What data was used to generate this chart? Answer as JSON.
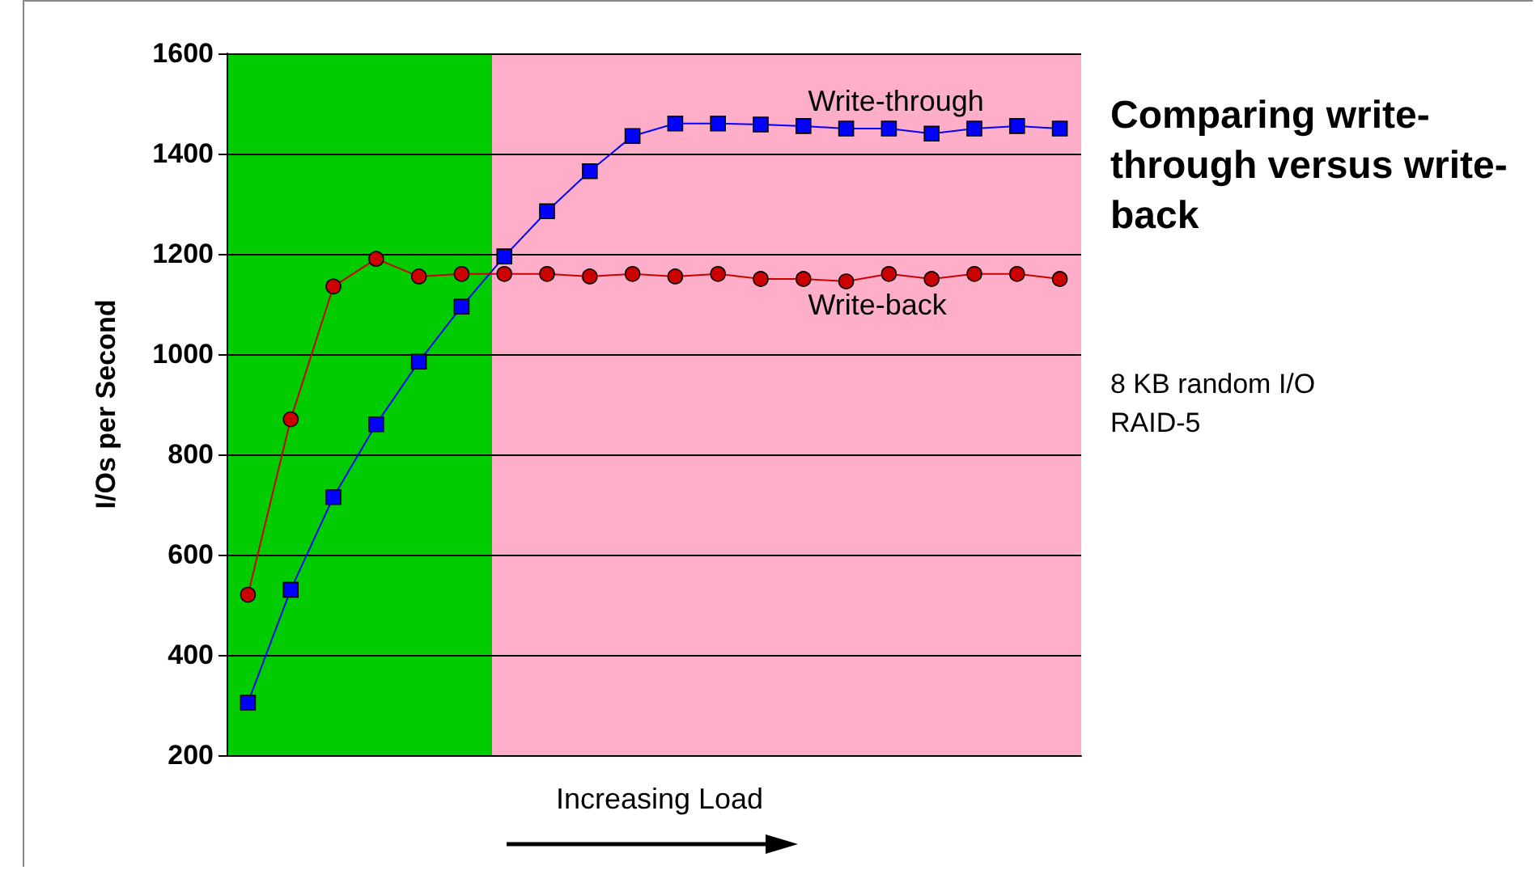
{
  "chart_data": {
    "type": "line",
    "title": "Comparing write-through versus write-back",
    "xlabel": "Increasing Load",
    "ylabel": "I/Os per Second",
    "annotations": [
      "8 KB random I/O",
      "RAID-5"
    ],
    "categories": [
      null,
      null,
      null,
      null,
      null,
      null,
      null,
      null,
      null,
      null,
      null,
      null,
      null,
      null,
      null,
      null,
      null,
      null,
      null,
      null
    ],
    "ylim": [
      200,
      1600
    ],
    "yticks": [
      200,
      400,
      600,
      800,
      1000,
      1200,
      1400,
      1600
    ],
    "tick_labels": "y",
    "grid": "y",
    "line_style": "solid",
    "series": [
      {
        "name": "Write-through",
        "color": "#0000ff",
        "marker": "square",
        "values": [
          305,
          530,
          715,
          860,
          985,
          1095,
          1195,
          1285,
          1365,
          1435,
          1460,
          1460,
          1458,
          1455,
          1450,
          1450,
          1440,
          1450,
          1455,
          1450
        ]
      },
      {
        "name": "Write-back",
        "color": "#cc0000",
        "marker": "circle",
        "values": [
          520,
          870,
          1135,
          1190,
          1155,
          1160,
          1160,
          1160,
          1155,
          1160,
          1155,
          1160,
          1150,
          1150,
          1145,
          1160,
          1150,
          1160,
          1160,
          1150
        ]
      }
    ]
  }
}
